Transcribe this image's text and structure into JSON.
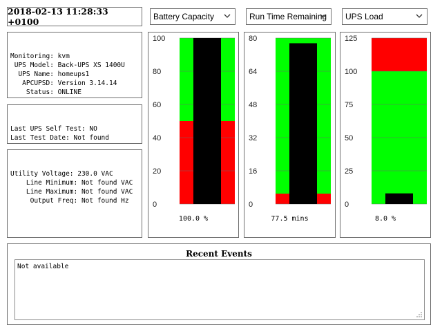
{
  "header": {
    "datetime": "2018-02-13 11:28:33 +0100"
  },
  "status": {
    "lines": [
      "Monitoring: kvm",
      " UPS Model: Back-UPS XS 1400U",
      "  UPS Name: homeups1",
      "   APCUPSD: Version 3.14.14",
      "    Status: ONLINE"
    ]
  },
  "selftest": {
    "lines": [
      "Last UPS Self Test: NO",
      "Last Test Date: Not found"
    ]
  },
  "power": {
    "lines": [
      "Utility Voltage: 230.0 VAC",
      "    Line Minimum: Not found VAC",
      "    Line Maximum: Not found VAC",
      "     Output Freq: Not found Hz"
    ]
  },
  "gauges": [
    {
      "select": "Battery Capacity",
      "readout": "100.0 %",
      "ticks": [
        "100",
        "80",
        "60",
        "40",
        "20",
        "0"
      ],
      "max": 100,
      "value": 100,
      "green_from": 50,
      "colors": {
        "low": "#ff0000",
        "high": "#00ff00",
        "bar": "#000000"
      }
    },
    {
      "select": "Run Time Remaining",
      "readout": "77.5 mins",
      "ticks": [
        "80",
        "64",
        "48",
        "32",
        "16",
        "0"
      ],
      "max": 80,
      "value": 77.5,
      "green_from": 5,
      "colors": {
        "low": "#ff0000",
        "high": "#00ff00",
        "bar": "#000000"
      }
    },
    {
      "select": "UPS Load",
      "readout": "8.0 %",
      "ticks": [
        "125",
        "100",
        "75",
        "50",
        "25",
        "0"
      ],
      "max": 125,
      "value": 8,
      "red_from": 100,
      "colors": {
        "low": "#00ff00",
        "high": "#ff0000",
        "bar": "#000000"
      }
    }
  ],
  "events": {
    "title": "Recent Events",
    "text": "Not available"
  }
}
